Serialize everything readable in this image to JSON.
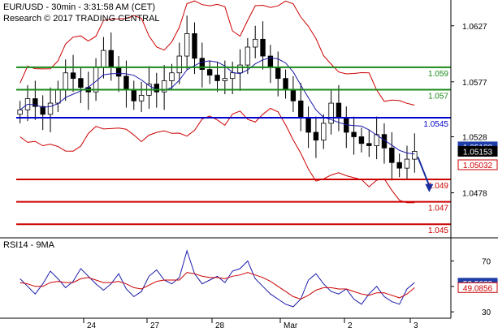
{
  "header": {
    "line1": "EUR/USD - 30min - 3:31:58 AM (CET)",
    "line2": "Research © 2017 TRADING CENTRAL"
  },
  "rsi_header": "RSI14 - 9MA",
  "colors": {
    "candle": "#000000",
    "bollinger": "#cc0000",
    "moving_average": "#1a1aaa",
    "resistance": "#1a8a1a",
    "pivot": "#0000cc",
    "support": "#cc0000",
    "arrow": "#1a2f9c",
    "rsi": "#1a1aaa",
    "rsi_ma": "#cc0000",
    "tag_blue": "#1f3fa8",
    "tag_black": "#000000",
    "tag_red": "#cc0000"
  },
  "chart_data": [
    {
      "type": "candlestick",
      "title": "EUR/USD - 30min",
      "ylim": [
        1.044,
        1.065
      ],
      "x_tick_labels": [
        "24",
        "27",
        "28",
        "Mar",
        "2",
        "3"
      ],
      "y_tick_labels": [
        "1.0627",
        "1.0577",
        "1.0528",
        "1.0478"
      ],
      "y_ticks": [
        1.0627,
        1.0577,
        1.0528,
        1.0478
      ],
      "grid": false,
      "levels": [
        {
          "value": 1.059,
          "label": "1.059",
          "kind": "resistance"
        },
        {
          "value": 1.057,
          "label": "1.057",
          "kind": "resistance"
        },
        {
          "value": 1.0545,
          "label": "1.0545",
          "kind": "pivot"
        },
        {
          "value": 1.049,
          "label": "1.049",
          "kind": "support"
        },
        {
          "value": 1.047,
          "label": "1.047",
          "kind": "support"
        },
        {
          "value": 1.045,
          "label": "1.045",
          "kind": "support"
        }
      ],
      "price_tags": [
        {
          "label": "1.05188",
          "value": 1.0519,
          "style": "blue"
        },
        {
          "label": "1.05153",
          "value": 1.0515,
          "style": "black"
        },
        {
          "label": "1.05032",
          "value": 1.0503,
          "style": "red"
        }
      ],
      "close_series": [
        1.0552,
        1.0562,
        1.0555,
        1.0548,
        1.0558,
        1.057,
        1.0585,
        1.058,
        1.0572,
        1.0568,
        1.059,
        1.0605,
        1.059,
        1.0582,
        1.057,
        1.056,
        1.0565,
        1.0575,
        1.0568,
        1.0578,
        1.0585,
        1.06,
        1.062,
        1.0598,
        1.0588,
        1.0583,
        1.0578,
        1.058,
        1.0585,
        1.0592,
        1.0608,
        1.0615,
        1.06,
        1.059,
        1.058,
        1.057,
        1.056,
        1.0545,
        1.0532,
        1.0525,
        1.054,
        1.0558,
        1.0545,
        1.0532,
        1.0528,
        1.0522,
        1.052,
        1.053,
        1.0518,
        1.0505,
        1.05,
        1.0508,
        1.0515
      ],
      "projection": {
        "from": 1.051,
        "to": 1.048
      }
    },
    {
      "type": "line",
      "title": "RSI14 - 9MA",
      "ylim": [
        25,
        85
      ],
      "y_tick_labels": [
        "70",
        "50",
        "30"
      ],
      "y_ticks": [
        70,
        50,
        30
      ],
      "series": [
        {
          "name": "RSI14",
          "values": [
            56,
            50,
            44,
            52,
            62,
            56,
            49,
            54,
            64,
            58,
            52,
            47,
            52,
            60,
            48,
            42,
            46,
            58,
            63,
            55,
            52,
            57,
            78,
            60,
            52,
            55,
            58,
            53,
            62,
            64,
            70,
            56,
            50,
            44,
            40,
            36,
            34,
            40,
            55,
            60,
            52,
            46,
            44,
            48,
            40,
            36,
            44,
            50,
            42,
            38,
            36,
            48,
            53
          ]
        },
        {
          "name": "9MA",
          "values": [
            53,
            52,
            50,
            50,
            53,
            54,
            53,
            53,
            56,
            57,
            55,
            53,
            53,
            54,
            52,
            49,
            48,
            51,
            54,
            55,
            55,
            55,
            61,
            60,
            58,
            57,
            57,
            56,
            58,
            59,
            61,
            59,
            57,
            54,
            50,
            46,
            42,
            40,
            43,
            47,
            49,
            49,
            48,
            48,
            46,
            44,
            43,
            45,
            45,
            43,
            41,
            44,
            49
          ]
        }
      ],
      "value_tags": [
        {
          "label": "52.5633",
          "value": 52.56,
          "style": "blue"
        },
        {
          "label": "49.0856",
          "value": 49.09,
          "style": "red"
        }
      ]
    }
  ]
}
